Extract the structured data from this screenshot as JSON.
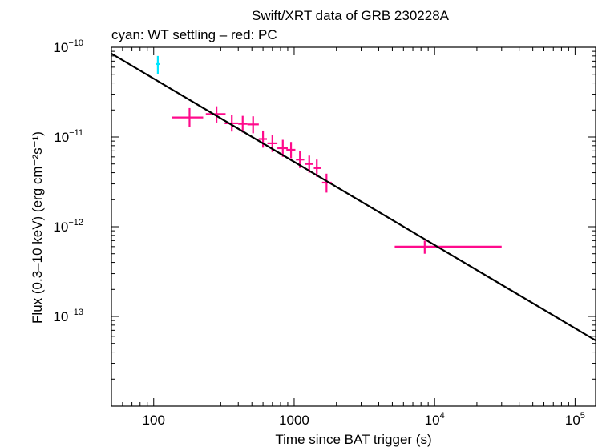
{
  "chart_data": {
    "type": "scatter",
    "title": "Swift/XRT data of GRB 230228A",
    "subtitle": "cyan: WT settling – red: PC",
    "xlabel": "Time since BAT trigger (s)",
    "ylabel": "Flux (0.3–10 keV) (erg cm⁻²s⁻¹)",
    "xscale": "log",
    "yscale": "log",
    "xlim": [
      50,
      140000
    ],
    "ylim": [
      1e-14,
      1e-10
    ],
    "x_ticks": [
      {
        "value": 100,
        "base": "100",
        "exp": ""
      },
      {
        "value": 1000,
        "base": "1000",
        "exp": ""
      },
      {
        "value": 10000,
        "base": "10",
        "exp": "4"
      },
      {
        "value": 100000,
        "base": "10",
        "exp": "5"
      }
    ],
    "y_ticks": [
      {
        "value": 1e-10,
        "base": "10",
        "exp": "−10"
      },
      {
        "value": 1e-11,
        "base": "10",
        "exp": "−11"
      },
      {
        "value": 1e-12,
        "base": "10",
        "exp": "−12"
      },
      {
        "value": 1e-13,
        "base": "10",
        "exp": "−13"
      }
    ],
    "colors": {
      "wt": "#00e5ff",
      "pc": "#ff0a8c",
      "fit": "#000000",
      "frame": "#000000"
    },
    "series": [
      {
        "name": "WT settling",
        "color": "#00e5ff",
        "points": [
          {
            "x": 107,
            "y": 6.5e-11,
            "xlo": 104,
            "xhi": 110,
            "ylo": 5e-11,
            "yhi": 8e-11
          }
        ]
      },
      {
        "name": "PC",
        "color": "#ff0a8c",
        "points": [
          {
            "x": 180,
            "y": 1.65e-11,
            "xlo": 135,
            "xhi": 225,
            "ylo": 1.3e-11,
            "yhi": 2.1e-11
          },
          {
            "x": 280,
            "y": 1.8e-11,
            "xlo": 235,
            "xhi": 325,
            "ylo": 1.45e-11,
            "yhi": 2.2e-11
          },
          {
            "x": 360,
            "y": 1.42e-11,
            "xlo": 320,
            "xhi": 400,
            "ylo": 1.15e-11,
            "yhi": 1.75e-11
          },
          {
            "x": 430,
            "y": 1.4e-11,
            "xlo": 400,
            "xhi": 465,
            "ylo": 1.12e-11,
            "yhi": 1.72e-11
          },
          {
            "x": 510,
            "y": 1.38e-11,
            "xlo": 465,
            "xhi": 560,
            "ylo": 1.1e-11,
            "yhi": 1.7e-11
          },
          {
            "x": 600,
            "y": 9.5e-12,
            "xlo": 560,
            "xhi": 640,
            "ylo": 7.6e-12,
            "yhi": 1.18e-11
          },
          {
            "x": 700,
            "y": 8.5e-12,
            "xlo": 645,
            "xhi": 760,
            "ylo": 6.8e-12,
            "yhi": 1.05e-11
          },
          {
            "x": 830,
            "y": 7.5e-12,
            "xlo": 760,
            "xhi": 900,
            "ylo": 6e-12,
            "yhi": 9.3e-12
          },
          {
            "x": 950,
            "y": 7.2e-12,
            "xlo": 880,
            "xhi": 1020,
            "ylo": 5.8e-12,
            "yhi": 8.8e-12
          },
          {
            "x": 1100,
            "y": 5.6e-12,
            "xlo": 1030,
            "xhi": 1180,
            "ylo": 4.5e-12,
            "yhi": 7e-12
          },
          {
            "x": 1280,
            "y": 5e-12,
            "xlo": 1190,
            "xhi": 1370,
            "ylo": 4e-12,
            "yhi": 6.2e-12
          },
          {
            "x": 1450,
            "y": 4.5e-12,
            "xlo": 1380,
            "xhi": 1550,
            "ylo": 3.6e-12,
            "yhi": 5.6e-12
          },
          {
            "x": 1700,
            "y": 3.1e-12,
            "xlo": 1580,
            "xhi": 1850,
            "ylo": 2.4e-12,
            "yhi": 3.9e-12
          },
          {
            "x": 8500,
            "y": 6e-13,
            "xlo": 5200,
            "xhi": 30000,
            "ylo": 5e-13,
            "yhi": 7e-13
          }
        ]
      }
    ],
    "fit": {
      "x": [
        50,
        140000
      ],
      "y": [
        8.5e-11,
        5.4e-14
      ]
    }
  }
}
